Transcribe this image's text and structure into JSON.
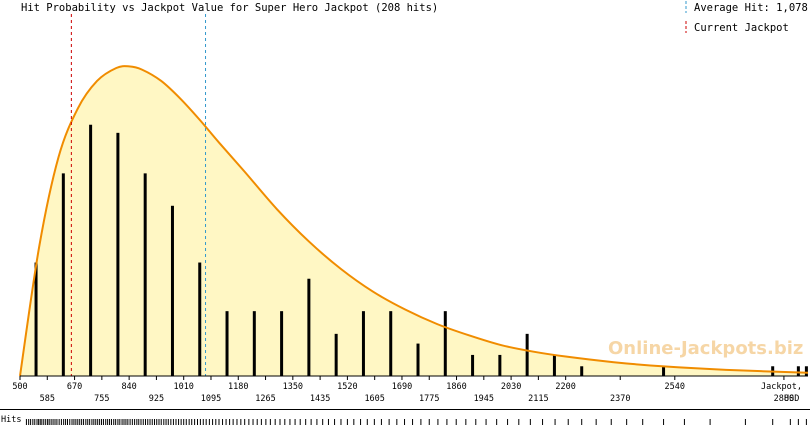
{
  "chart_data": {
    "type": "bar",
    "title": "Hit Probability vs Jackpot Value for Super Hero Jackpot (208 hits)",
    "xlabel": [
      "Jackpot,",
      "USD"
    ],
    "watermark": "Online-Jackpots.biz",
    "hits_label": "Hits",
    "xlim": [
      500,
      2955
    ],
    "ylim": [
      0,
      19
    ],
    "x_ticks_top": [
      500,
      670,
      840,
      1010,
      1180,
      1350,
      1520,
      1690,
      1860,
      2030,
      2200,
      2540
    ],
    "x_ticks_bottom": [
      585,
      755,
      925,
      1095,
      1265,
      1435,
      1605,
      1775,
      1945,
      2115,
      2370,
      2880
    ],
    "bars": {
      "x": [
        550,
        635,
        720,
        805,
        890,
        975,
        1060,
        1145,
        1230,
        1315,
        1400,
        1485,
        1570,
        1655,
        1740,
        1825,
        1910,
        1995,
        2080,
        2165,
        2250,
        2505,
        2845,
        2925,
        2950
      ],
      "values": [
        7,
        12.5,
        15.5,
        15,
        12.5,
        10.5,
        7,
        4,
        4,
        4,
        6,
        2.6,
        4,
        4,
        2,
        4,
        1.3,
        1.3,
        2.6,
        1.3,
        0.6,
        0.6,
        0.6,
        0.6,
        0.6
      ]
    },
    "curve": {
      "x": [
        500,
        560,
        620,
        680,
        740,
        800,
        840,
        880,
        940,
        1000,
        1060,
        1120,
        1200,
        1300,
        1400,
        1500,
        1600,
        1700,
        1800,
        1900,
        2000,
        2100,
        2200,
        2350,
        2500,
        2700,
        2955
      ],
      "y": [
        0,
        8,
        13.5,
        16.5,
        18.2,
        19,
        19.1,
        18.9,
        18.2,
        17.1,
        15.8,
        14.4,
        12.6,
        10.3,
        8.3,
        6.6,
        5.2,
        4.1,
        3.2,
        2.5,
        1.9,
        1.5,
        1.2,
        0.85,
        0.6,
        0.38,
        0.2
      ],
      "color": "#f08c00",
      "fill": "#fff7c4"
    },
    "average_hit": {
      "label": "Average Hit: 1,078",
      "value": 1078,
      "color": "#3399cc"
    },
    "current_jackpot": {
      "label": "Current Jackpot",
      "value": 660,
      "color": "#cc0000"
    },
    "grid": false,
    "legend_position": "top-right",
    "hits_rug": [
      520,
      527,
      533,
      540,
      546,
      553,
      558,
      563,
      568,
      574,
      580,
      586,
      591,
      597,
      603,
      609,
      615,
      622,
      629,
      636,
      642,
      648,
      655,
      662,
      668,
      674,
      680,
      686,
      692,
      698,
      705,
      711,
      717,
      724,
      730,
      736,
      742,
      748,
      754,
      760,
      767,
      773,
      779,
      785,
      792,
      798,
      805,
      811,
      818,
      824,
      830,
      836,
      843,
      850,
      857,
      864,
      870,
      877,
      884,
      891,
      898,
      905,
      912,
      919,
      926,
      933,
      940,
      948,
      955,
      962,
      970,
      978,
      986,
      994,
      1002,
      1010,
      1018,
      1027,
      1035,
      1044,
      1053,
      1062,
      1071,
      1080,
      1090,
      1100,
      1110,
      1120,
      1131,
      1142,
      1153,
      1164,
      1176,
      1188,
      1200,
      1213,
      1226,
      1239,
      1252,
      1266,
      1280,
      1295,
      1310,
      1325,
      1341,
      1357,
      1373,
      1390,
      1407,
      1425,
      1443,
      1461,
      1480,
      1500,
      1520,
      1540,
      1561,
      1582,
      1604,
      1626,
      1650,
      1674,
      1698,
      1723,
      1749,
      1775,
      1802,
      1830,
      1859,
      1889,
      1920,
      1952,
      1985,
      2019,
      2054,
      2090,
      2128,
      2167,
      2208,
      2250,
      2295,
      2342,
      2390,
      2440,
      2505,
      2570,
      2650,
      2760,
      2845,
      2900,
      2925,
      2950
    ]
  }
}
